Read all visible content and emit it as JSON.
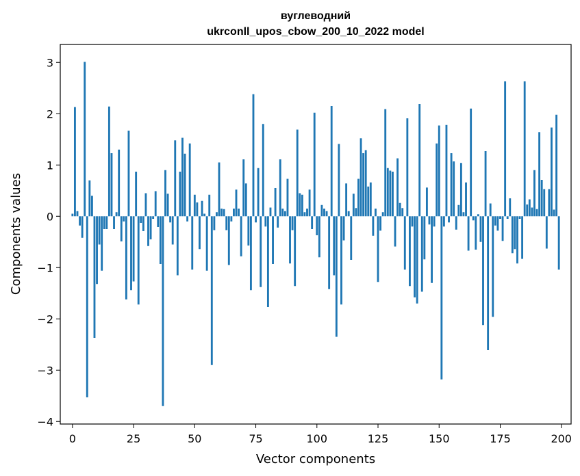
{
  "chart_data": {
    "type": "bar",
    "title_line1": "вуглеводний",
    "title_line2": "ukrconll_upos_cbow_200_10_2022 model",
    "xlabel": "Vector components",
    "ylabel": "Components values",
    "xlim": [
      -5,
      204
    ],
    "ylim": [
      -4.05,
      3.35
    ],
    "xticks": [
      0,
      25,
      50,
      75,
      100,
      125,
      150,
      175,
      200
    ],
    "yticks": [
      -4,
      -3,
      -2,
      -1,
      0,
      1,
      2,
      3
    ],
    "bar_color": "#1f77b4",
    "grid": false,
    "values": [
      0.05,
      2.13,
      0.1,
      -0.18,
      -0.42,
      3.01,
      -3.53,
      0.7,
      0.4,
      -2.37,
      -1.32,
      -0.55,
      -1.06,
      -0.25,
      -0.25,
      2.14,
      1.23,
      -0.25,
      0.08,
      1.3,
      -0.49,
      -0.1,
      -1.62,
      1.67,
      -1.44,
      -1.27,
      0.87,
      -1.72,
      -0.13,
      -0.29,
      0.45,
      -0.58,
      -0.45,
      -0.05,
      0.49,
      -0.21,
      -0.93,
      -3.7,
      0.9,
      0.44,
      -0.12,
      -0.55,
      1.48,
      -1.15,
      0.87,
      1.53,
      1.22,
      -0.1,
      1.42,
      -1.04,
      0.42,
      0.27,
      -0.64,
      0.3,
      0.05,
      -1.06,
      0.42,
      -2.9,
      -0.27,
      0.08,
      1.05,
      0.15,
      0.14,
      -0.27,
      -0.95,
      -0.1,
      0.15,
      0.52,
      0.15,
      -0.78,
      1.11,
      0.64,
      -0.57,
      -1.44,
      2.38,
      -0.12,
      0.94,
      -1.38,
      1.8,
      -0.2,
      -1.77,
      0.17,
      -0.93,
      0.55,
      -0.22,
      1.11,
      0.15,
      0.1,
      0.73,
      -0.92,
      -0.27,
      -1.36,
      1.69,
      0.45,
      0.42,
      0.08,
      0.15,
      0.52,
      -0.25,
      2.02,
      -0.37,
      -0.8,
      0.22,
      0.15,
      0.1,
      -1.42,
      2.15,
      -1.15,
      -2.35,
      1.41,
      -1.72,
      -0.47,
      0.64,
      0.1,
      -0.85,
      0.44,
      0.16,
      0.73,
      1.52,
      1.23,
      1.29,
      0.58,
      0.66,
      -0.38,
      0.15,
      -1.28,
      -0.28,
      0.08,
      2.09,
      0.94,
      0.89,
      0.87,
      -0.59,
      1.13,
      0.26,
      0.16,
      -1.04,
      1.91,
      -1.36,
      -0.2,
      -1.58,
      -1.7,
      2.19,
      -1.47,
      -0.84,
      0.56,
      -0.16,
      -1.3,
      -0.2,
      1.42,
      1.77,
      -3.18,
      -0.2,
      1.78,
      -0.12,
      1.23,
      1.07,
      -0.26,
      0.22,
      1.04,
      0.08,
      0.66,
      -0.67,
      2.1,
      -0.08,
      -0.65,
      0.04,
      -0.5,
      -2.12,
      1.27,
      -2.61,
      0.25,
      -1.96,
      -0.18,
      -0.28,
      -0.05,
      -0.48,
      2.63,
      -0.05,
      0.35,
      -0.72,
      -0.64,
      -0.92,
      -0.05,
      -0.83,
      2.63,
      0.23,
      0.33,
      0.17,
      0.9,
      0.14,
      1.64,
      0.71,
      0.53,
      -0.63,
      0.53,
      1.73,
      0.13,
      1.98,
      -1.04
    ]
  }
}
